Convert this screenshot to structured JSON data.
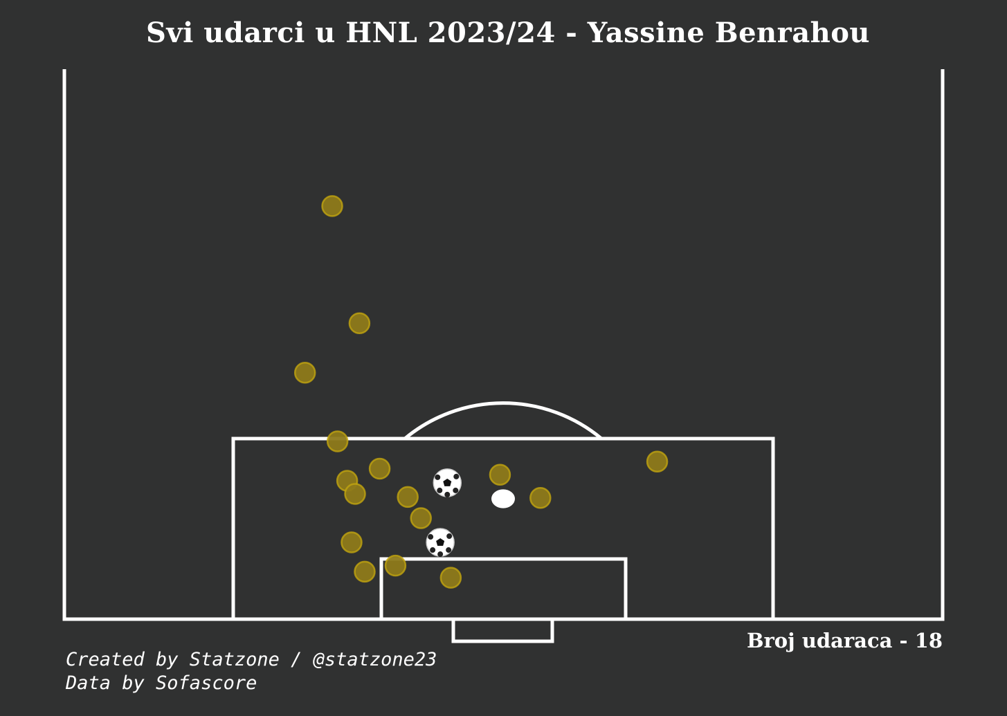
{
  "title": "Svi udarci u HNL 2023/24 - Yassine Benrahou",
  "shot_count_text": "Broj udaraca - 18",
  "credits": {
    "created_by": "Created by Statzone / @statzone23",
    "data_by": "Data by Sofascore"
  },
  "colors": {
    "background": "#303131",
    "lines": "#ffffff",
    "shot_fill": "#8e7a1a",
    "shot_edge": "#c2a50f"
  },
  "icons": {
    "goal": "soccer-ball-icon",
    "penalty_spot": "penalty-spot"
  },
  "chart_data": {
    "type": "scatter",
    "description_axes": "half-pitch shot map, x = distance across pitch width, y = distance from goal line",
    "xlim": [
      0,
      100
    ],
    "ylim": [
      0,
      50
    ],
    "series": [
      {
        "outcome": "no-goal",
        "points": [
          {
            "x": 30.5,
            "y": 40.9
          },
          {
            "x": 33.6,
            "y": 29.3
          },
          {
            "x": 27.4,
            "y": 24.4
          },
          {
            "x": 31.1,
            "y": 17.6
          },
          {
            "x": 35.9,
            "y": 14.9
          },
          {
            "x": 32.2,
            "y": 13.7
          },
          {
            "x": 33.1,
            "y": 12.4
          },
          {
            "x": 39.1,
            "y": 12.1
          },
          {
            "x": 40.6,
            "y": 10.0
          },
          {
            "x": 32.7,
            "y": 7.6
          },
          {
            "x": 37.7,
            "y": 5.3
          },
          {
            "x": 34.2,
            "y": 4.7
          },
          {
            "x": 44.0,
            "y": 4.1
          },
          {
            "x": 49.6,
            "y": 14.3
          },
          {
            "x": 54.2,
            "y": 12.0
          },
          {
            "x": 67.5,
            "y": 15.6
          }
        ]
      },
      {
        "outcome": "goal",
        "points": [
          {
            "x": 43.6,
            "y": 13.5
          },
          {
            "x": 42.8,
            "y": 7.6
          }
        ]
      }
    ]
  }
}
